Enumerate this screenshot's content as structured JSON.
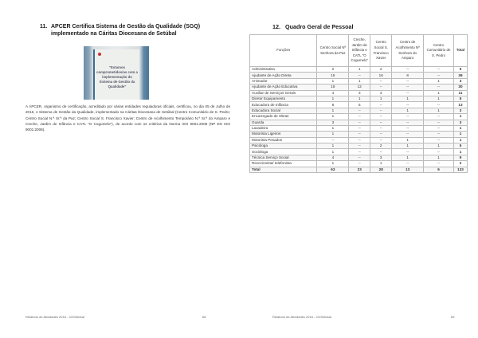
{
  "left_page": {
    "section_number": "11.",
    "title_line1": "APCER Certifica Sistema de Gestão da Qualidade (SGQ)",
    "title_line2": "implementado na Cáritas Diocesana de Setúbal",
    "photo_text": "\"Estamos comprometidos/as com a implementação do Sistema de Gestão da Qualidade\"",
    "paragraph": "A APCER, organismo de certificação, acreditado por várias entidades reguladoras oficiais, certificou, no dia 05 de Julho de 2016, o Sistema de Gestão da Qualidade, implementado na Cáritas Diocesana de Setúbal (Centro Comunitário de S. Pedro; Centro Social N.ª Sr.ª da Paz; Centro Social S. Francisco Xavier; Centro de Acolhimento Temporário N.ª Sr.ª do Amparo e Creche, Jardim de Infância e CATL \"O Cogumelo\"), de acordo com os critérios da Norma ISO 9001:2008 (NP EN ISO 9001:2008).",
    "footer": "Relatório de Atividades 2016 - CDSetúbal",
    "page_number": "68"
  },
  "right_page": {
    "section_number": "12.",
    "title": "Quadro Geral de Pessoal",
    "headers": [
      "Funções",
      "Centro Social Nª Senhora da Paz",
      "Creche, Jardim de Infância e CATL \"O Cogumelo\"",
      "Centro Social S. Francisco Xavier",
      "Centro de Acolhimento Nª Senhora do Amparo",
      "Centro Comunitário de S. Pedro",
      "Total"
    ],
    "rows": [
      [
        "Administrativa",
        "2",
        "1",
        "2",
        "--",
        "--",
        "5"
      ],
      [
        "Ajudante de Ação Direta",
        "15",
        "--",
        "16",
        "8",
        "--",
        "39"
      ],
      [
        "Animador",
        "1",
        "1",
        "--",
        "--",
        "1",
        "3"
      ],
      [
        "Ajudante de Ação Educativa",
        "18",
        "12",
        "--",
        "--",
        "--",
        "30"
      ],
      [
        "Auxiliar de Serviços Gerais",
        "4",
        "3",
        "3",
        "--",
        "1",
        "11"
      ],
      [
        "Diretor Equipamento",
        "1",
        "1",
        "1",
        "1",
        "1",
        "5"
      ],
      [
        "Educadora de Infância",
        "8",
        "5",
        "--",
        "--",
        "--",
        "13"
      ],
      [
        "Educadora Social",
        "1",
        "--",
        "--",
        "1",
        "1",
        "3"
      ],
      [
        "Encarregado de Obras",
        "1",
        "--",
        "--",
        "--",
        "--",
        "1"
      ],
      [
        "Guarda",
        "3",
        "--",
        "--",
        "--",
        "--",
        "3"
      ],
      [
        "Lavadeira",
        "1",
        "--",
        "--",
        "--",
        "--",
        "1"
      ],
      [
        "Motorista Ligeiros",
        "1",
        "--",
        "--",
        "--",
        "--",
        "1"
      ],
      [
        "Motorista Pesados",
        "--",
        "--",
        "--",
        "1",
        "--",
        "1"
      ],
      [
        "Psicóloga",
        "1",
        "--",
        "2",
        "1",
        "1",
        "5"
      ],
      [
        "Socióloga",
        "1",
        "--",
        "--",
        "--",
        "--",
        "1"
      ],
      [
        "Técnica Serviço Social",
        "4",
        "--",
        "3",
        "1",
        "1",
        "9"
      ],
      [
        "Rececionista/ telefonista",
        "1",
        "--",
        "1",
        "--",
        "--",
        "2"
      ]
    ],
    "total_row": [
      "Total",
      "63",
      "23",
      "28",
      "13",
      "6",
      "133"
    ],
    "footer": "Relatório de Atividades 2016 - CDSetúbal",
    "page_number": "69"
  }
}
